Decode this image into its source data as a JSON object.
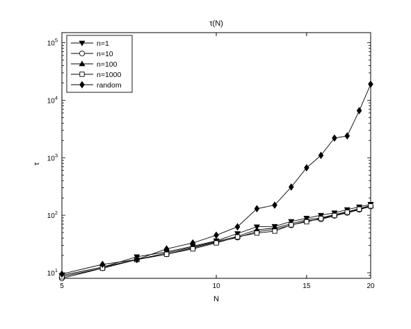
{
  "chart_data": {
    "type": "line",
    "title": "τ(N)",
    "xlabel": "N",
    "ylabel": "τ",
    "x_scale": "log",
    "y_scale": "log",
    "xlim": [
      5,
      20
    ],
    "ylim": [
      8,
      150000
    ],
    "x_ticks": [
      {
        "value": 5,
        "label": "5"
      },
      {
        "value": 10,
        "label": "10"
      },
      {
        "value": 15,
        "label": "15"
      },
      {
        "value": 20,
        "label": "20"
      }
    ],
    "y_ticks": [
      {
        "value": 10,
        "base": "10",
        "exp": "1"
      },
      {
        "value": 100,
        "base": "10",
        "exp": "2"
      },
      {
        "value": 1000,
        "base": "10",
        "exp": "3"
      },
      {
        "value": 10000,
        "base": "10",
        "exp": "4"
      },
      {
        "value": 100000,
        "base": "10",
        "exp": "5"
      }
    ],
    "grid": false,
    "legend_position": "top-left",
    "x": [
      5,
      6,
      7,
      8,
      9,
      10,
      11,
      12,
      13,
      14,
      15,
      16,
      17,
      18,
      19,
      20
    ],
    "series": [
      {
        "name": "n=1",
        "marker": "triangle-down",
        "values": [
          9,
          12.5,
          19,
          23,
          29,
          36,
          48,
          63,
          64,
          78,
          89,
          100,
          110,
          125,
          140,
          155
        ]
      },
      {
        "name": "n=10",
        "marker": "circle",
        "values": [
          8,
          12,
          17,
          21,
          27,
          34,
          41,
          52,
          57,
          67,
          80,
          85,
          98,
          110,
          125,
          142
        ]
      },
      {
        "name": "n=100",
        "marker": "triangle-up",
        "values": [
          9,
          12.5,
          17,
          22,
          28,
          35,
          43,
          56,
          60,
          71,
          84,
          90,
          103,
          115,
          130,
          148
        ]
      },
      {
        "name": "n=1000",
        "marker": "square",
        "values": [
          8.5,
          12,
          17,
          21,
          26,
          33,
          42,
          49,
          53,
          68,
          77,
          88,
          99,
          113,
          128,
          145
        ]
      },
      {
        "name": "random",
        "marker": "diamond",
        "values": [
          9.5,
          14,
          17,
          26,
          33,
          45,
          63,
          130,
          150,
          310,
          670,
          1100,
          2200,
          2400,
          6600,
          19000
        ]
      }
    ]
  }
}
